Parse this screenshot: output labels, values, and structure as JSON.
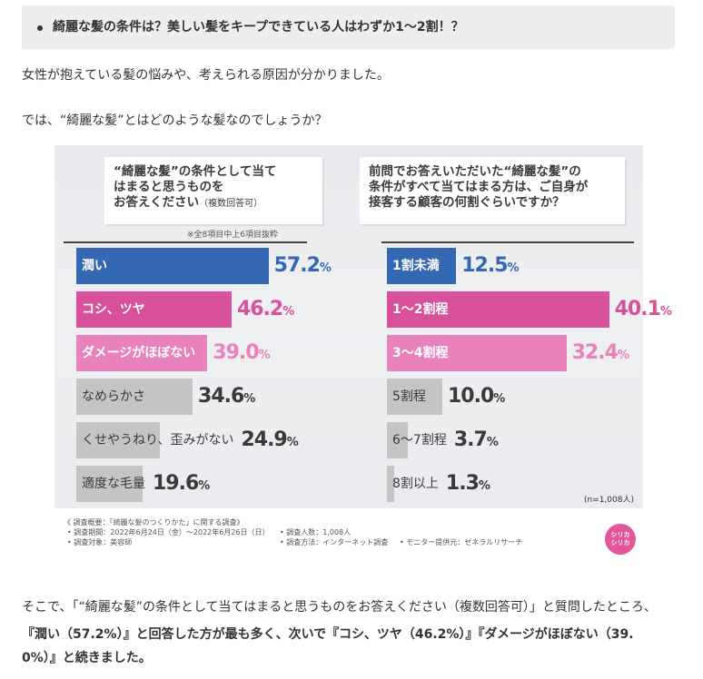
{
  "heading": {
    "bullet": "綺麗な髪の条件は？美しい髪をキープできている人はわずか1～2割！？"
  },
  "intro": {
    "line1": "女性が抱えている髪の悩みや、考えられる原因が分かりました。",
    "line2": "では、“綺麗な髪”とはどのような髪なのでしょうか？"
  },
  "infographic": {
    "left_question": [
      "“綺麗な髪”の条件として当て",
      "はまると思うものを",
      "お答えください"
    ],
    "left_question_note": "（複数回答可）",
    "left_sub_note": "※全8項目中上6項目抜粋",
    "right_question": [
      "前問でお答えいただいた“綺麗な髪”の",
      "条件がすべて当てはまる方は、ご自身が",
      "接客する顧客の何割ぐらいですか？"
    ],
    "sample_size": "(n=1,008人)",
    "survey_lines": [
      "《 調査概要：「綺麗な髪のつくりかた」に関する調査》",
      "• 調査期間：2022年6月24日（金）～2022年6月26日（日）",
      "• 調査対象：美容師",
      "• 調査人数：1,008人",
      "• 調査方法：インターネット調査",
      "• モニター提供元：ゼネラルリサーチ"
    ],
    "logo_text": [
      "シリカ",
      "シリカ"
    ]
  },
  "chart_data": [
    {
      "type": "bar",
      "title": "“綺麗な髪”の条件として当てはまると思うものをお答えください（複数回答可）",
      "categories": [
        "潤い",
        "コシ、ツヤ",
        "ダメージがほぼない",
        "なめらかさ",
        "くせやうねり、歪みがない",
        "適度な毛量"
      ],
      "values": [
        57.2,
        46.2,
        39.0,
        34.6,
        24.9,
        19.6
      ],
      "labels": [
        "57.2",
        "46.2",
        "39.0",
        "34.6",
        "24.9",
        "19.6"
      ],
      "unit": "%",
      "colors": [
        "#3468b4",
        "#d8519a",
        "#e982bb",
        "#c4c4c4",
        "#c4c4c4",
        "#c4c4c4"
      ]
    },
    {
      "type": "bar",
      "title": "前問でお答えいただいた“綺麗な髪”の条件がすべて当てはまる方は、ご自身が接客する顧客の何割ぐらいですか？",
      "categories": [
        "1割未満",
        "1～2割程",
        "3～4割程",
        "5割程",
        "6～7割程",
        "8割以上"
      ],
      "values": [
        12.5,
        40.1,
        32.4,
        10.0,
        3.7,
        1.3
      ],
      "labels": [
        "12.5",
        "40.1",
        "32.4",
        "10.0",
        "3.7",
        "1.3"
      ],
      "unit": "%",
      "colors": [
        "#3468b4",
        "#d8519a",
        "#e982bb",
        "#c4c4c4",
        "#c4c4c4",
        "#c4c4c4"
      ]
    }
  ],
  "outro": {
    "line1": "そこで、「“綺麗な髪”の条件として当てはまると思うものをお答えください（複数回答可）」と質問したところ、",
    "line2": "『潤い（57.2%）』と回答した方が最も多く、次いで『コシ、ツヤ（46.2%）』『ダメージがほぼない（39.",
    "line3": "0%）』と続きました。"
  }
}
